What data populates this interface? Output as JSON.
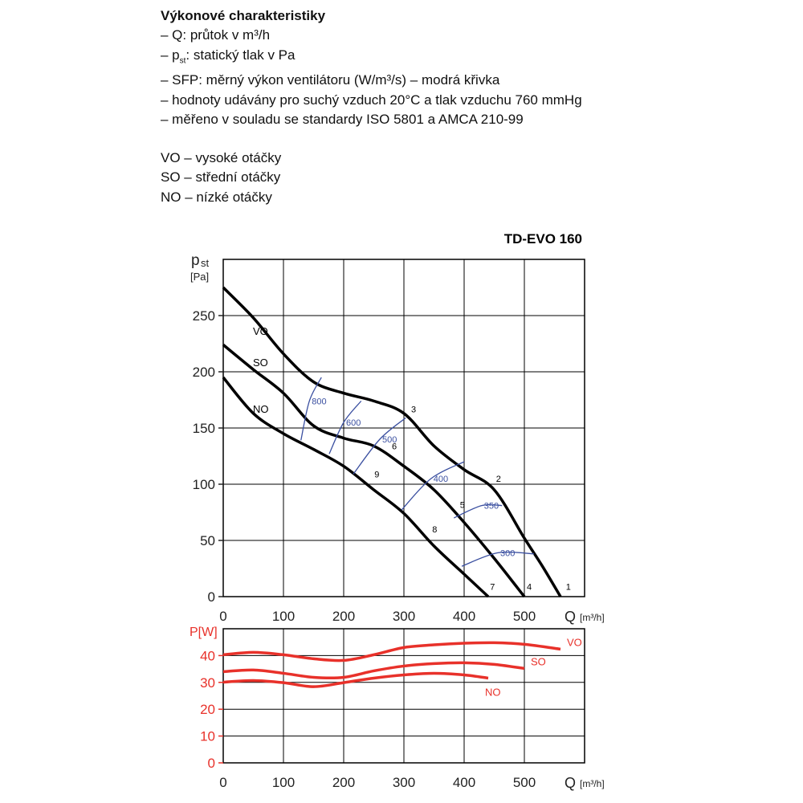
{
  "intro": {
    "title": "Výkonové charakteristiky",
    "lines": [
      "– Q: průtok v m³/h"
    ],
    "pst_line": {
      "pre": "– p",
      "sub": "st",
      "post": ": statický tlak v Pa"
    },
    "more_lines": [
      "– SFP: měrný výkon ventilátoru (W/m³/s) – modrá křivka",
      "– hodnoty udávány pro suchý vzduch 20°C a tlak vzduchu 760 mmHg",
      "– měřeno v souladu se standardy ISO 5801 a AMCA 210-99"
    ],
    "legend": [
      "VO – vysoké otáčky",
      "SO – střední otáčky",
      "NO – nízké otáčky"
    ]
  },
  "chart_data": [
    {
      "type": "line",
      "title": "TD-EVO 160",
      "y_label": "p",
      "y_label_sub": "st",
      "y_unit": "[Pa]",
      "x_label": "Q",
      "x_unit": "[m³/h]",
      "xlim": [
        0,
        600
      ],
      "ylim": [
        0,
        300
      ],
      "xticks": [
        0,
        100,
        200,
        300,
        400,
        500
      ],
      "yticks": [
        0,
        50,
        100,
        150,
        200,
        250
      ],
      "grid": true,
      "series": [
        {
          "name": "VO",
          "color": "#000000",
          "x": [
            0,
            50,
            100,
            150,
            200,
            250,
            300,
            350,
            400,
            450,
            500,
            530,
            560
          ],
          "values": [
            275,
            248,
            216,
            191,
            181,
            174,
            163,
            134,
            113,
            95,
            52,
            27,
            0
          ]
        },
        {
          "name": "SO",
          "color": "#000000",
          "x": [
            0,
            50,
            100,
            150,
            200,
            250,
            300,
            350,
            400,
            450,
            500
          ],
          "values": [
            224,
            202,
            181,
            152,
            141,
            134,
            116,
            95,
            66,
            34,
            0
          ]
        },
        {
          "name": "NO",
          "color": "#000000",
          "x": [
            0,
            50,
            100,
            150,
            200,
            250,
            300,
            350,
            400,
            440
          ],
          "values": [
            195,
            163,
            145,
            131,
            116,
            95,
            74,
            45,
            20,
            0
          ]
        },
        {
          "name": "800",
          "color": "#3a4fa0",
          "x": [
            129,
            143,
            163
          ],
          "values": [
            139,
            174,
            195
          ]
        },
        {
          "name": "600",
          "color": "#3a4fa0",
          "x": [
            176,
            200,
            229
          ],
          "values": [
            127,
            155,
            174
          ]
        },
        {
          "name": "500",
          "color": "#3a4fa0",
          "x": [
            216,
            260,
            303
          ],
          "values": [
            109,
            140,
            159
          ]
        },
        {
          "name": "400",
          "color": "#3a4fa0",
          "x": [
            296,
            345,
            400
          ],
          "values": [
            77,
            105,
            120
          ]
        },
        {
          "name": "350",
          "color": "#3a4fa0",
          "x": [
            383,
            429,
            463
          ],
          "values": [
            70,
            81,
            81
          ]
        },
        {
          "name": "300",
          "color": "#3a4fa0",
          "x": [
            396,
            456,
            516
          ],
          "values": [
            27,
            39,
            38
          ]
        }
      ],
      "points": [
        {
          "label": "1",
          "x": 569,
          "y": 6
        },
        {
          "label": "2",
          "x": 453,
          "y": 102
        },
        {
          "label": "3",
          "x": 312,
          "y": 164
        },
        {
          "label": "4",
          "x": 504,
          "y": 6
        },
        {
          "label": "5",
          "x": 393,
          "y": 79
        },
        {
          "label": "6",
          "x": 280,
          "y": 131
        },
        {
          "label": "7",
          "x": 443,
          "y": 6
        },
        {
          "label": "8",
          "x": 347,
          "y": 57
        },
        {
          "label": "9",
          "x": 251,
          "y": 106
        }
      ]
    },
    {
      "type": "line",
      "y_label": "P[W]",
      "x_label": "Q",
      "x_unit": "[m³/h]",
      "xlim": [
        0,
        600
      ],
      "ylim": [
        0,
        50
      ],
      "xticks": [
        0,
        100,
        200,
        300,
        400,
        500
      ],
      "yticks": [
        0,
        10,
        20,
        30,
        40
      ],
      "grid": true,
      "series": [
        {
          "name": "VO",
          "color": "#e8312a",
          "x": [
            0,
            50,
            100,
            150,
            200,
            250,
            300,
            350,
            400,
            450,
            500,
            560
          ],
          "values": [
            40.3,
            41.2,
            40.3,
            38.8,
            38.2,
            40.3,
            43,
            44,
            44.6,
            44.8,
            44.2,
            42.4
          ]
        },
        {
          "name": "SO",
          "color": "#e8312a",
          "x": [
            0,
            50,
            100,
            150,
            200,
            250,
            300,
            350,
            400,
            450,
            500
          ],
          "values": [
            34,
            34.6,
            33.4,
            31.9,
            31.9,
            34.3,
            36.1,
            37,
            37.3,
            36.7,
            35.2
          ]
        },
        {
          "name": "NO",
          "color": "#e8312a",
          "x": [
            0,
            50,
            100,
            150,
            200,
            250,
            300,
            350,
            400,
            440
          ],
          "values": [
            30.1,
            30.7,
            29.9,
            28.4,
            29.9,
            31.6,
            32.8,
            33.4,
            32.8,
            31.6
          ]
        }
      ]
    }
  ]
}
